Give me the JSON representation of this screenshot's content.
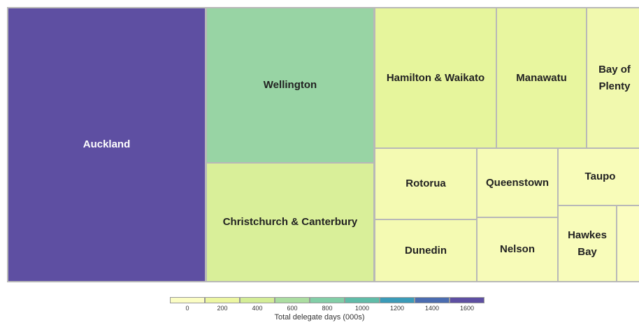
{
  "chart_data": {
    "type": "treemap",
    "nodes": [
      {
        "name": "Auckland",
        "value": 1650,
        "color": "#5e4fa2"
      },
      {
        "name": "Wellington",
        "value": 790,
        "color": "#98d4a4"
      },
      {
        "name": "Christchurch & Canterbury",
        "value": 600,
        "color": "#d9ef99"
      },
      {
        "name": "Hamilton & Waikato",
        "value": 520,
        "color": "#e6f59c"
      },
      {
        "name": "Manawatu",
        "value": 380,
        "color": "#e8f69f"
      },
      {
        "name": "Bay of Plenty",
        "value": 300,
        "color": "#f1f9ae"
      },
      {
        "name": "Rotorua",
        "value": 220,
        "color": "#f4fab2"
      },
      {
        "name": "Dunedin",
        "value": 190,
        "color": "#f4fab2"
      },
      {
        "name": "Queenstown",
        "value": 170,
        "color": "#f6fbb6"
      },
      {
        "name": "Nelson",
        "value": 155,
        "color": "#f7fbb8"
      },
      {
        "name": "Taupo",
        "value": 140,
        "color": "#f8fcb9"
      },
      {
        "name": "Hawkes Bay",
        "value": 135,
        "color": "#f8fcba"
      },
      {
        "name": null,
        "value": 80,
        "color": "#fbfdc0"
      }
    ],
    "legend": {
      "title": "Total delegate days (000s)",
      "ticks": [
        0,
        200,
        400,
        600,
        800,
        1000,
        1200,
        1400,
        1600
      ],
      "colors": [
        "#fbfdc4",
        "#ecf6a2",
        "#d4ed97",
        "#abdda1",
        "#82cea7",
        "#60bca8",
        "#3b9bb8",
        "#4b6cb0",
        "#5e4fa2"
      ]
    }
  }
}
